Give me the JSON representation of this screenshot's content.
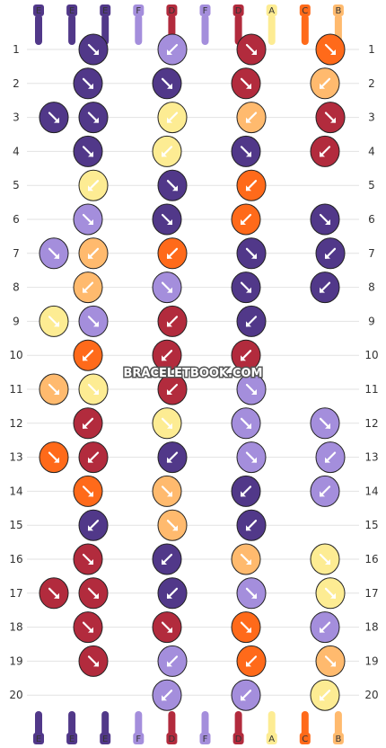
{
  "colors": {
    "A": "#FDEC93",
    "B": "#FFBA6E",
    "C": "#FF6A1A",
    "D": "#B22B3D",
    "E": "#513889",
    "F": "#A48EDC",
    "label_bg": "#FDEC93"
  },
  "strands": {
    "top": [
      "E",
      "E",
      "E",
      "F",
      "D",
      "F",
      "D",
      "A",
      "C",
      "B"
    ],
    "bottom": [
      "E",
      "E",
      "E",
      "F",
      "D",
      "F",
      "D",
      "A",
      "C",
      "B"
    ]
  },
  "rows": [
    {
      "num": "1",
      "knots": [
        {
          "col": 1,
          "color": "E",
          "dir": "se"
        },
        {
          "col": 3,
          "color": "F",
          "dir": "sw"
        },
        {
          "col": 5,
          "color": "D",
          "dir": "se"
        },
        {
          "col": 7,
          "color": "C",
          "dir": "se"
        }
      ]
    },
    {
      "num": "2",
      "knots": [
        {
          "col": 0,
          "color": "E",
          "dir": "se"
        },
        {
          "col": 2,
          "color": "E",
          "dir": "se"
        },
        {
          "col": 4,
          "color": "D",
          "dir": "se"
        },
        {
          "col": 6,
          "color": "B",
          "dir": "sw"
        }
      ]
    },
    {
      "num": "3",
      "knots": [
        {
          "col": 0,
          "color": "E",
          "dir": "se"
        },
        {
          "col": 1,
          "color": "E",
          "dir": "se"
        },
        {
          "col": 3,
          "color": "A",
          "dir": "sw"
        },
        {
          "col": 5,
          "color": "B",
          "dir": "sw"
        },
        {
          "col": 7,
          "color": "D",
          "dir": "se"
        }
      ]
    },
    {
      "num": "4",
      "knots": [
        {
          "col": 0,
          "color": "E",
          "dir": "se"
        },
        {
          "col": 2,
          "color": "A",
          "dir": "sw"
        },
        {
          "col": 4,
          "color": "E",
          "dir": "se"
        },
        {
          "col": 6,
          "color": "D",
          "dir": "sw"
        }
      ]
    },
    {
      "num": "5",
      "knots": [
        {
          "col": 1,
          "color": "A",
          "dir": "sw"
        },
        {
          "col": 3,
          "color": "E",
          "dir": "se"
        },
        {
          "col": 5,
          "color": "C",
          "dir": "sw"
        }
      ]
    },
    {
      "num": "6",
      "knots": [
        {
          "col": 0,
          "color": "F",
          "dir": "se"
        },
        {
          "col": 2,
          "color": "E",
          "dir": "se"
        },
        {
          "col": 4,
          "color": "C",
          "dir": "sw"
        },
        {
          "col": 6,
          "color": "E",
          "dir": "se"
        }
      ]
    },
    {
      "num": "7",
      "knots": [
        {
          "col": 0,
          "color": "F",
          "dir": "se"
        },
        {
          "col": 1,
          "color": "B",
          "dir": "sw"
        },
        {
          "col": 3,
          "color": "C",
          "dir": "sw"
        },
        {
          "col": 5,
          "color": "E",
          "dir": "se"
        },
        {
          "col": 7,
          "color": "E",
          "dir": "sw"
        }
      ]
    },
    {
      "num": "8",
      "knots": [
        {
          "col": 0,
          "color": "B",
          "dir": "sw"
        },
        {
          "col": 2,
          "color": "F",
          "dir": "se"
        },
        {
          "col": 4,
          "color": "E",
          "dir": "se"
        },
        {
          "col": 6,
          "color": "E",
          "dir": "sw"
        }
      ]
    },
    {
      "num": "9",
      "knots": [
        {
          "col": 0,
          "color": "A",
          "dir": "se"
        },
        {
          "col": 1,
          "color": "F",
          "dir": "se"
        },
        {
          "col": 3,
          "color": "D",
          "dir": "sw"
        },
        {
          "col": 5,
          "color": "E",
          "dir": "sw"
        }
      ]
    },
    {
      "num": "10",
      "knots": [
        {
          "col": 0,
          "color": "C",
          "dir": "sw"
        },
        {
          "col": 2,
          "color": "D",
          "dir": "sw"
        },
        {
          "col": 4,
          "color": "D",
          "dir": "sw"
        }
      ]
    },
    {
      "num": "11",
      "knots": [
        {
          "col": 0,
          "color": "B",
          "dir": "se"
        },
        {
          "col": 1,
          "color": "A",
          "dir": "se"
        },
        {
          "col": 3,
          "color": "D",
          "dir": "sw"
        },
        {
          "col": 5,
          "color": "F",
          "dir": "se"
        }
      ]
    },
    {
      "num": "12",
      "knots": [
        {
          "col": 0,
          "color": "D",
          "dir": "sw"
        },
        {
          "col": 2,
          "color": "A",
          "dir": "se"
        },
        {
          "col": 4,
          "color": "F",
          "dir": "se"
        },
        {
          "col": 6,
          "color": "F",
          "dir": "se"
        }
      ]
    },
    {
      "num": "13",
      "knots": [
        {
          "col": 0,
          "color": "C",
          "dir": "se"
        },
        {
          "col": 1,
          "color": "D",
          "dir": "sw"
        },
        {
          "col": 3,
          "color": "E",
          "dir": "sw"
        },
        {
          "col": 5,
          "color": "F",
          "dir": "se"
        },
        {
          "col": 7,
          "color": "F",
          "dir": "sw"
        }
      ]
    },
    {
      "num": "14",
      "knots": [
        {
          "col": 0,
          "color": "C",
          "dir": "se"
        },
        {
          "col": 2,
          "color": "B",
          "dir": "se"
        },
        {
          "col": 4,
          "color": "E",
          "dir": "sw"
        },
        {
          "col": 6,
          "color": "F",
          "dir": "sw"
        }
      ]
    },
    {
      "num": "15",
      "knots": [
        {
          "col": 1,
          "color": "E",
          "dir": "sw"
        },
        {
          "col": 3,
          "color": "B",
          "dir": "se"
        },
        {
          "col": 5,
          "color": "E",
          "dir": "sw"
        }
      ]
    },
    {
      "num": "16",
      "knots": [
        {
          "col": 0,
          "color": "D",
          "dir": "se"
        },
        {
          "col": 2,
          "color": "E",
          "dir": "sw"
        },
        {
          "col": 4,
          "color": "B",
          "dir": "se"
        },
        {
          "col": 6,
          "color": "A",
          "dir": "se"
        }
      ]
    },
    {
      "num": "17",
      "knots": [
        {
          "col": 0,
          "color": "D",
          "dir": "se"
        },
        {
          "col": 1,
          "color": "D",
          "dir": "se"
        },
        {
          "col": 3,
          "color": "E",
          "dir": "sw"
        },
        {
          "col": 5,
          "color": "F",
          "dir": "se"
        },
        {
          "col": 7,
          "color": "A",
          "dir": "se"
        }
      ]
    },
    {
      "num": "18",
      "knots": [
        {
          "col": 0,
          "color": "D",
          "dir": "se"
        },
        {
          "col": 2,
          "color": "D",
          "dir": "se"
        },
        {
          "col": 4,
          "color": "C",
          "dir": "se"
        },
        {
          "col": 6,
          "color": "F",
          "dir": "sw"
        }
      ]
    },
    {
      "num": "19",
      "knots": [
        {
          "col": 1,
          "color": "D",
          "dir": "se"
        },
        {
          "col": 3,
          "color": "F",
          "dir": "sw"
        },
        {
          "col": 5,
          "color": "C",
          "dir": "sw"
        },
        {
          "col": 7,
          "color": "B",
          "dir": "se"
        }
      ]
    },
    {
      "num": "20",
      "knots": [
        {
          "col": 2,
          "color": "F",
          "dir": "sw"
        },
        {
          "col": 4,
          "color": "F",
          "dir": "sw"
        },
        {
          "col": 6,
          "color": "A",
          "dir": "sw"
        }
      ]
    }
  ],
  "watermark": "BRACELETBOOK.COM"
}
